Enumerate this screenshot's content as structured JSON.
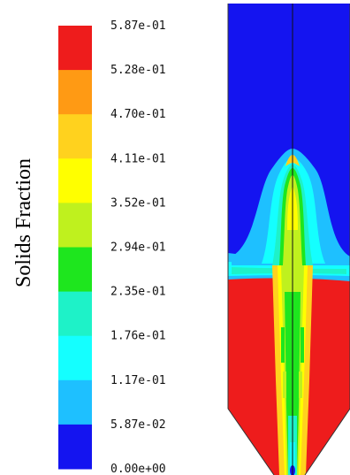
{
  "chart_data": {
    "type": "heatmap",
    "title": "",
    "colorbar": {
      "label": "Solids Fraction",
      "ticks": [
        "5.87e-01",
        "5.28e-01",
        "4.70e-01",
        "4.11e-01",
        "3.52e-01",
        "2.94e-01",
        "2.35e-01",
        "1.76e-01",
        "1.17e-01",
        "5.87e-02",
        "0.00e+00"
      ],
      "range": [
        0.0,
        0.587
      ],
      "colors": [
        "#ee1c1c",
        "#ff9a14",
        "#ffd21e",
        "#ffff00",
        "#bff11e",
        "#1ee61e",
        "#1ef2c8",
        "#14ffff",
        "#1ec0ff",
        "#1414f0"
      ]
    },
    "field": {
      "background_value": 0.0,
      "bed_value": 0.587,
      "bubble_plume": "centered",
      "annotations": []
    }
  }
}
